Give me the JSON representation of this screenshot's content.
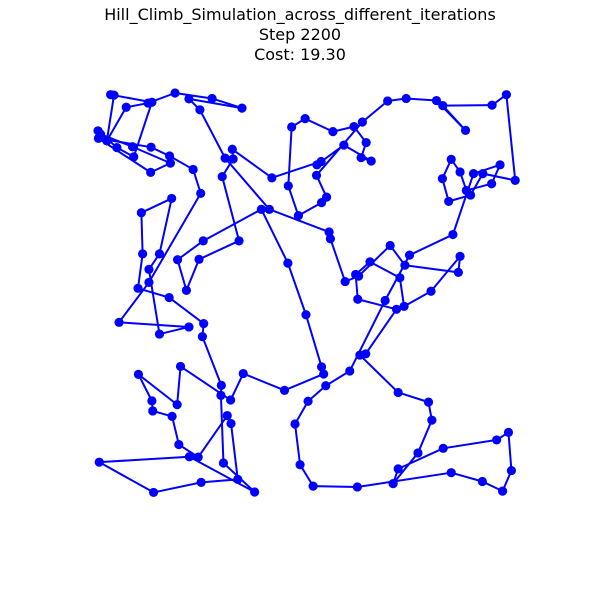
{
  "chart_data": {
    "type": "line",
    "title": "Hill_Climb_Simulation_across_different_iterations",
    "subtitle_lines": [
      "Step 2200",
      "Cost: 19.30"
    ],
    "step": 2200,
    "cost": 19.3,
    "xlabel": "",
    "ylabel": "",
    "xlim": [
      0,
      1
    ],
    "ylim": [
      0,
      1
    ],
    "axis_visible": false,
    "grid": false,
    "closed_path": true,
    "line_color": "#0000ff",
    "marker_color": "#0000ff",
    "marker": "circle",
    "points": [
      [
        0.045,
        0.87
      ],
      [
        0.085,
        0.848
      ],
      [
        0.128,
        0.978
      ],
      [
        0.03,
        0.996
      ],
      [
        0.038,
        0.995
      ],
      [
        0.021,
        0.886
      ],
      [
        0.067,
        0.966
      ],
      [
        0.119,
        0.976
      ],
      [
        0.183,
        1.0
      ],
      [
        0.271,
        0.987
      ],
      [
        0.342,
        0.964
      ],
      [
        0.216,
        0.986
      ],
      [
        0.242,
        0.96
      ],
      [
        0.302,
        0.845
      ],
      [
        0.407,
        0.723
      ],
      [
        0.549,
        0.669
      ],
      [
        0.552,
        0.653
      ],
      [
        0.587,
        0.551
      ],
      [
        0.619,
        0.564
      ],
      [
        0.694,
        0.637
      ],
      [
        0.729,
        0.59
      ],
      [
        0.856,
        0.573
      ],
      [
        0.86,
        0.611
      ],
      [
        0.791,
        0.528
      ],
      [
        0.727,
        0.492
      ],
      [
        0.717,
        0.56
      ],
      [
        0.646,
        0.598
      ],
      [
        0.612,
        0.568
      ],
      [
        0.617,
        0.509
      ],
      [
        0.709,
        0.485
      ],
      [
        0.636,
        0.379
      ],
      [
        0.622,
        0.376
      ],
      [
        0.713,
        0.287
      ],
      [
        0.785,
        0.264
      ],
      [
        0.793,
        0.221
      ],
      [
        0.76,
        0.143
      ],
      [
        0.701,
        0.07
      ],
      [
        0.713,
        0.105
      ],
      [
        0.82,
        0.154
      ],
      [
        0.947,
        0.174
      ],
      [
        0.975,
        0.192
      ],
      [
        0.982,
        0.101
      ],
      [
        0.961,
        0.052
      ],
      [
        0.913,
        0.075
      ],
      [
        0.839,
        0.096
      ],
      [
        0.616,
        0.062
      ],
      [
        0.511,
        0.064
      ],
      [
        0.48,
        0.115
      ],
      [
        0.468,
        0.212
      ],
      [
        0.499,
        0.266
      ],
      [
        0.541,
        0.303
      ],
      [
        0.598,
        0.338
      ],
      [
        0.682,
        0.506
      ],
      [
        0.74,
        0.614
      ],
      [
        0.843,
        0.663
      ],
      [
        0.892,
        0.808
      ],
      [
        0.955,
        0.829
      ],
      [
        0.935,
        0.784
      ],
      [
        0.875,
        0.768
      ],
      [
        0.86,
        0.812
      ],
      [
        0.839,
        0.842
      ],
      [
        0.818,
        0.796
      ],
      [
        0.833,
        0.742
      ],
      [
        0.885,
        0.757
      ],
      [
        0.914,
        0.808
      ],
      [
        0.991,
        0.792
      ],
      [
        0.97,
        0.996
      ],
      [
        0.936,
        0.971
      ],
      [
        0.819,
        0.97
      ],
      [
        0.873,
        0.911
      ],
      [
        0.804,
        0.982
      ],
      [
        0.732,
        0.987
      ],
      [
        0.688,
        0.981
      ],
      [
        0.628,
        0.931
      ],
      [
        0.519,
        0.804
      ],
      [
        0.543,
        0.752
      ],
      [
        0.531,
        0.739
      ],
      [
        0.476,
        0.708
      ],
      [
        0.452,
        0.779
      ],
      [
        0.46,
        0.919
      ],
      [
        0.492,
        0.939
      ],
      [
        0.558,
        0.908
      ],
      [
        0.608,
        0.92
      ],
      [
        0.637,
        0.882
      ],
      [
        0.625,
        0.846
      ],
      [
        0.649,
        0.838
      ],
      [
        0.584,
        0.876
      ],
      [
        0.52,
        0.829
      ],
      [
        0.53,
        0.837
      ],
      [
        0.413,
        0.798
      ],
      [
        0.319,
        0.866
      ],
      [
        0.321,
        0.843
      ],
      [
        0.295,
        0.801
      ],
      [
        0.335,
        0.648
      ],
      [
        0.24,
        0.604
      ],
      [
        0.21,
        0.53
      ],
      [
        0.189,
        0.603
      ],
      [
        0.25,
        0.648
      ],
      [
        0.388,
        0.723
      ],
      [
        0.451,
        0.595
      ],
      [
        0.494,
        0.472
      ],
      [
        0.531,
        0.348
      ],
      [
        0.536,
        0.331
      ],
      [
        0.443,
        0.292
      ],
      [
        0.345,
        0.332
      ],
      [
        0.315,
        0.269
      ],
      [
        0.196,
        0.349
      ],
      [
        0.188,
        0.258
      ],
      [
        0.096,
        0.33
      ],
      [
        0.128,
        0.267
      ],
      [
        0.13,
        0.243
      ],
      [
        0.176,
        0.23
      ],
      [
        0.192,
        0.163
      ],
      [
        0.238,
        0.133
      ],
      [
        0.307,
        0.232
      ],
      [
        0.316,
        0.213
      ],
      [
        0.332,
        0.08
      ],
      [
        0.245,
        0.073
      ],
      [
        0.132,
        0.049
      ],
      [
        0.003,
        0.121
      ],
      [
        0.217,
        0.134
      ],
      [
        0.372,
        0.05
      ],
      [
        0.298,
        0.119
      ],
      [
        0.292,
        0.28
      ],
      [
        0.293,
        0.304
      ],
      [
        0.248,
        0.42
      ],
      [
        0.251,
        0.451
      ],
      [
        0.169,
        0.513
      ],
      [
        0.095,
        0.535
      ],
      [
        0.106,
        0.617
      ],
      [
        0.103,
        0.715
      ],
      [
        0.175,
        0.749
      ],
      [
        0.146,
        0.617
      ],
      [
        0.121,
        0.58
      ],
      [
        0.146,
        0.426
      ],
      [
        0.216,
        0.443
      ],
      [
        0.05,
        0.454
      ],
      [
        0.121,
        0.549
      ],
      [
        0.244,
        0.761
      ],
      [
        0.226,
        0.818
      ],
      [
        0.17,
        0.85
      ],
      [
        0.126,
        0.871
      ],
      [
        0.001,
        0.892
      ],
      [
        0.125,
        0.811
      ],
      [
        0.172,
        0.833
      ],
      [
        0.082,
        0.872
      ],
      [
        0.006,
        0.902
      ],
      [
        0.0,
        0.91
      ]
    ]
  }
}
